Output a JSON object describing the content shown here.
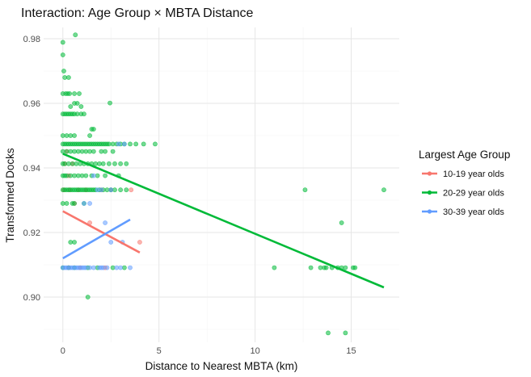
{
  "chart_data": {
    "type": "scatter",
    "title": "Interaction: Age Group × MBTA Distance",
    "xlabel": "Distance to Nearest MBTA (km)",
    "ylabel": "Transformed Docks",
    "xlim": [
      -1.0,
      17.5
    ],
    "ylim": [
      0.886,
      0.9835
    ],
    "x_ticks": [
      0,
      5,
      10,
      15
    ],
    "x_tick_labels": [
      "0",
      "5",
      "10",
      "15"
    ],
    "y_ticks": [
      0.9,
      0.92,
      0.94,
      0.96,
      0.98
    ],
    "y_tick_labels": [
      "0.90",
      "0.92",
      "0.94",
      "0.96",
      "0.98"
    ],
    "grid": true,
    "legend": {
      "title": "Largest Age Group",
      "placement": "right"
    },
    "series": [
      {
        "name": "10-19 year olds",
        "color": "#F8766D",
        "points": [
          [
            0.05,
            0.9332
          ],
          [
            0.1,
            0.9413
          ],
          [
            0.2,
            0.9451
          ],
          [
            0.3,
            0.9376
          ],
          [
            0.35,
            0.9332
          ],
          [
            0.5,
            0.9413
          ],
          [
            0.6,
            0.929
          ],
          [
            0.8,
            0.9332
          ],
          [
            1.2,
            0.9332
          ],
          [
            1.4,
            0.923
          ],
          [
            2.0,
            0.9332
          ],
          [
            2.5,
            0.9332
          ],
          [
            3.55,
            0.9332
          ],
          [
            4.0,
            0.917
          ],
          [
            0.3,
            0.9091
          ],
          [
            0.9,
            0.9091
          ],
          [
            2.2,
            0.9091
          ]
        ],
        "trend": [
          [
            0.0,
            0.9266
          ],
          [
            4.0,
            0.9138
          ]
        ]
      },
      {
        "name": "20-29 year olds",
        "color": "#00BA38",
        "points": [
          [
            0.0,
            0.9789
          ],
          [
            0.0,
            0.975
          ],
          [
            0.05,
            0.97
          ],
          [
            0.1,
            0.968
          ],
          [
            0.0,
            0.963
          ],
          [
            0.15,
            0.963
          ],
          [
            0.25,
            0.963
          ],
          [
            0.35,
            0.963
          ],
          [
            0.6,
            0.963
          ],
          [
            0.3,
            0.968
          ],
          [
            0.65,
            0.9812
          ],
          [
            0.4,
            0.959
          ],
          [
            0.6,
            0.96
          ],
          [
            0.75,
            0.96
          ],
          [
            0.85,
            0.963
          ],
          [
            0.95,
            0.959
          ],
          [
            2.45,
            0.9601
          ],
          [
            0.0,
            0.9567
          ],
          [
            0.1,
            0.9567
          ],
          [
            0.2,
            0.9567
          ],
          [
            0.3,
            0.9567
          ],
          [
            0.4,
            0.9567
          ],
          [
            0.5,
            0.9567
          ],
          [
            0.6,
            0.9567
          ],
          [
            0.75,
            0.9567
          ],
          [
            0.95,
            0.9567
          ],
          [
            1.1,
            0.9567
          ],
          [
            1.5,
            0.952
          ],
          [
            1.6,
            0.952
          ],
          [
            0.0,
            0.95
          ],
          [
            0.2,
            0.95
          ],
          [
            0.4,
            0.95
          ],
          [
            0.6,
            0.95
          ],
          [
            1.4,
            0.95
          ],
          [
            0.0,
            0.9474
          ],
          [
            0.1,
            0.9474
          ],
          [
            0.2,
            0.9474
          ],
          [
            0.3,
            0.9474
          ],
          [
            0.4,
            0.9474
          ],
          [
            0.5,
            0.9474
          ],
          [
            0.6,
            0.9474
          ],
          [
            0.7,
            0.9474
          ],
          [
            0.8,
            0.9474
          ],
          [
            0.9,
            0.9474
          ],
          [
            1.0,
            0.9474
          ],
          [
            1.1,
            0.9474
          ],
          [
            1.2,
            0.9474
          ],
          [
            1.3,
            0.9474
          ],
          [
            1.4,
            0.9474
          ],
          [
            1.5,
            0.9474
          ],
          [
            1.6,
            0.9474
          ],
          [
            1.7,
            0.9474
          ],
          [
            1.8,
            0.9474
          ],
          [
            1.9,
            0.9474
          ],
          [
            2.0,
            0.9474
          ],
          [
            2.1,
            0.9474
          ],
          [
            2.2,
            0.9474
          ],
          [
            2.3,
            0.9474
          ],
          [
            2.4,
            0.9474
          ],
          [
            2.6,
            0.9474
          ],
          [
            2.8,
            0.9474
          ],
          [
            3.0,
            0.9474
          ],
          [
            3.2,
            0.9474
          ],
          [
            3.5,
            0.9474
          ],
          [
            3.8,
            0.9474
          ],
          [
            4.2,
            0.9474
          ],
          [
            4.8,
            0.9474
          ],
          [
            0.0,
            0.9451
          ],
          [
            0.2,
            0.9451
          ],
          [
            0.4,
            0.9451
          ],
          [
            0.6,
            0.9451
          ],
          [
            0.8,
            0.9451
          ],
          [
            1.0,
            0.9451
          ],
          [
            1.2,
            0.9451
          ],
          [
            1.4,
            0.9451
          ],
          [
            1.6,
            0.9451
          ],
          [
            2.0,
            0.9451
          ],
          [
            2.2,
            0.9451
          ],
          [
            2.6,
            0.9451
          ],
          [
            0.0,
            0.9413
          ],
          [
            0.1,
            0.9413
          ],
          [
            0.3,
            0.9413
          ],
          [
            0.5,
            0.9413
          ],
          [
            0.7,
            0.9413
          ],
          [
            0.9,
            0.9413
          ],
          [
            1.1,
            0.9413
          ],
          [
            1.3,
            0.9413
          ],
          [
            1.5,
            0.9413
          ],
          [
            1.7,
            0.9413
          ],
          [
            1.9,
            0.9413
          ],
          [
            2.1,
            0.9413
          ],
          [
            2.4,
            0.9413
          ],
          [
            2.7,
            0.9413
          ],
          [
            3.0,
            0.9413
          ],
          [
            3.3,
            0.9413
          ],
          [
            0.0,
            0.9376
          ],
          [
            0.1,
            0.9376
          ],
          [
            0.2,
            0.9376
          ],
          [
            0.4,
            0.9376
          ],
          [
            0.6,
            0.9376
          ],
          [
            0.8,
            0.9376
          ],
          [
            1.0,
            0.9376
          ],
          [
            1.2,
            0.9376
          ],
          [
            1.5,
            0.9376
          ],
          [
            1.8,
            0.9376
          ],
          [
            2.2,
            0.9376
          ],
          [
            2.9,
            0.9376
          ],
          [
            0.0,
            0.9332
          ],
          [
            0.1,
            0.9332
          ],
          [
            0.2,
            0.9332
          ],
          [
            0.3,
            0.9332
          ],
          [
            0.4,
            0.9332
          ],
          [
            0.5,
            0.9332
          ],
          [
            0.6,
            0.9332
          ],
          [
            0.7,
            0.9332
          ],
          [
            0.8,
            0.9332
          ],
          [
            0.9,
            0.9332
          ],
          [
            1.0,
            0.9332
          ],
          [
            1.1,
            0.9332
          ],
          [
            1.2,
            0.9332
          ],
          [
            1.3,
            0.9332
          ],
          [
            1.4,
            0.9332
          ],
          [
            1.5,
            0.9332
          ],
          [
            1.6,
            0.9332
          ],
          [
            1.7,
            0.9332
          ],
          [
            1.9,
            0.9332
          ],
          [
            2.1,
            0.9332
          ],
          [
            2.3,
            0.9332
          ],
          [
            2.5,
            0.9332
          ],
          [
            2.7,
            0.9332
          ],
          [
            3.0,
            0.9332
          ],
          [
            3.3,
            0.9332
          ],
          [
            12.6,
            0.9332
          ],
          [
            16.7,
            0.9332
          ],
          [
            0.0,
            0.929
          ],
          [
            0.2,
            0.929
          ],
          [
            0.5,
            0.929
          ],
          [
            1.1,
            0.929
          ],
          [
            0.6,
            0.929
          ],
          [
            0.4,
            0.917
          ],
          [
            0.6,
            0.917
          ],
          [
            14.5,
            0.923
          ],
          [
            0.0,
            0.9091
          ],
          [
            0.3,
            0.9091
          ],
          [
            0.6,
            0.9091
          ],
          [
            1.3,
            0.9091
          ],
          [
            1.8,
            0.9091
          ],
          [
            2.6,
            0.9091
          ],
          [
            3.2,
            0.9091
          ],
          [
            11.0,
            0.9091
          ],
          [
            12.9,
            0.9091
          ],
          [
            13.4,
            0.9091
          ],
          [
            13.6,
            0.9091
          ],
          [
            13.7,
            0.9091
          ],
          [
            14.0,
            0.9091
          ],
          [
            14.3,
            0.9091
          ],
          [
            14.5,
            0.9091
          ],
          [
            14.7,
            0.9091
          ],
          [
            15.1,
            0.9091
          ],
          [
            15.2,
            0.9091
          ],
          [
            1.3,
            0.9
          ],
          [
            13.8,
            0.8889
          ],
          [
            14.7,
            0.8889
          ]
        ],
        "trend": [
          [
            0.0,
            0.9444
          ],
          [
            16.7,
            0.903
          ]
        ]
      },
      {
        "name": "30-39 year olds",
        "color": "#619CFF",
        "points": [
          [
            0.0,
            0.9091
          ],
          [
            0.1,
            0.9091
          ],
          [
            0.2,
            0.9091
          ],
          [
            0.3,
            0.9091
          ],
          [
            0.4,
            0.9091
          ],
          [
            0.5,
            0.9091
          ],
          [
            0.6,
            0.9091
          ],
          [
            0.7,
            0.9091
          ],
          [
            0.8,
            0.9091
          ],
          [
            0.9,
            0.9091
          ],
          [
            1.0,
            0.9091
          ],
          [
            1.1,
            0.9091
          ],
          [
            1.2,
            0.9091
          ],
          [
            1.4,
            0.9091
          ],
          [
            1.6,
            0.9091
          ],
          [
            1.9,
            0.9091
          ],
          [
            2.0,
            0.9091
          ],
          [
            2.1,
            0.9091
          ],
          [
            2.3,
            0.9091
          ],
          [
            2.8,
            0.9091
          ],
          [
            3.0,
            0.9091
          ],
          [
            3.5,
            0.9091
          ],
          [
            1.1,
            0.929
          ],
          [
            1.4,
            0.929
          ],
          [
            2.2,
            0.923
          ],
          [
            2.5,
            0.917
          ],
          [
            3.1,
            0.917
          ],
          [
            1.6,
            0.9376
          ],
          [
            1.8,
            0.9332
          ],
          [
            2.0,
            0.9332
          ],
          [
            2.5,
            0.9332
          ],
          [
            2.9,
            0.9474
          ],
          [
            3.2,
            0.9474
          ]
        ],
        "trend": [
          [
            0.0,
            0.912
          ],
          [
            3.5,
            0.924
          ]
        ]
      }
    ]
  }
}
